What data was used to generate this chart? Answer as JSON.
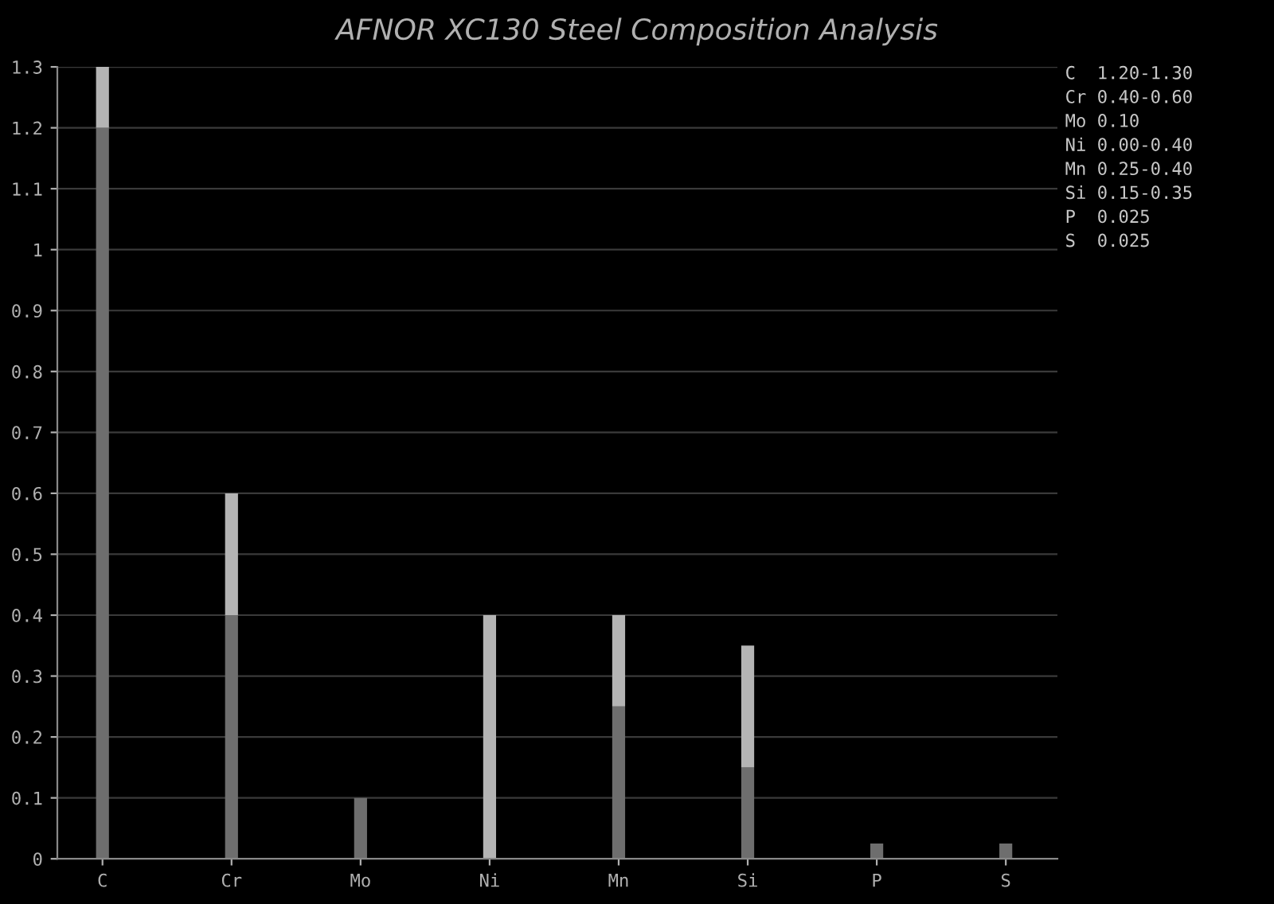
{
  "chart_data": {
    "type": "bar",
    "stacked": true,
    "title": "AFNOR XC130 Steel Composition Analysis",
    "categories": [
      "C",
      "Cr",
      "Mo",
      "Ni",
      "Mn",
      "Si",
      "P",
      "S"
    ],
    "series": [
      {
        "color": "#6e6e6e",
        "values": [
          1.2,
          0.4,
          0.1,
          0,
          0.25,
          0.15,
          0.025,
          0.025
        ]
      },
      {
        "color": "#b4b4b4",
        "values": [
          0.1,
          0.2,
          0,
          0.4,
          0.15,
          0.2,
          0,
          0
        ]
      }
    ],
    "ylim": [
      0,
      1.3
    ],
    "yticks": [
      0,
      0.1,
      0.2,
      0.3,
      0.4,
      0.5,
      0.6,
      0.7,
      0.8,
      0.9,
      1,
      1.1,
      1.2,
      1.3
    ],
    "grid": "y",
    "legend": false,
    "annotations": [
      "C  1.20-1.30",
      "Cr 0.40-0.60",
      "Mo 0.10",
      "Ni 0.00-0.40",
      "Mn 0.25-0.40",
      "Si 0.15-0.35",
      "P  0.025",
      "S  0.025"
    ]
  }
}
